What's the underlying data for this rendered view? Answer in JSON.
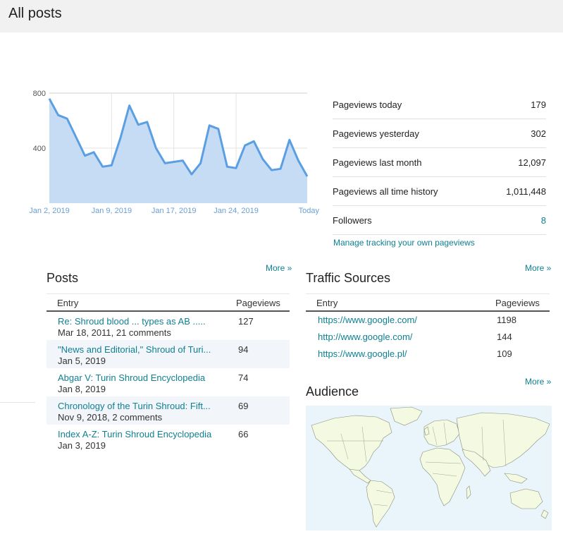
{
  "header": {
    "title": "All posts"
  },
  "chart_data": {
    "type": "area",
    "x_labels": [
      "Jan 2, 2019",
      "Jan 9, 2019",
      "Jan 17, 2019",
      "Jan 24, 2019",
      "Today"
    ],
    "yticks": [
      "800",
      "400"
    ],
    "ylim": [
      0,
      800
    ],
    "values": [
      760,
      640,
      615,
      480,
      345,
      370,
      265,
      275,
      475,
      710,
      570,
      590,
      400,
      290,
      300,
      310,
      210,
      290,
      565,
      540,
      265,
      255,
      420,
      450,
      320,
      240,
      250,
      460,
      310,
      195
    ],
    "line_color": "#5b9fe3",
    "fill_color": "#c6dcf5",
    "grid": true
  },
  "stats": [
    {
      "label": "Pageviews today",
      "value": "179"
    },
    {
      "label": "Pageviews yesterday",
      "value": "302"
    },
    {
      "label": "Pageviews last month",
      "value": "12,097"
    },
    {
      "label": "Pageviews all time history",
      "value": "1,011,448"
    },
    {
      "label": "Followers",
      "value": "8"
    }
  ],
  "manage_link": "Manage tracking your own pageviews",
  "posts": {
    "title": "Posts",
    "more": "More »",
    "col_entry": "Entry",
    "col_pageviews": "Pageviews",
    "rows": [
      {
        "title": "Re: Shroud blood ... types as AB .....",
        "sub": "Mar 18, 2011, 21 comments",
        "views": "127"
      },
      {
        "title": "\"News and Editorial,\" Shroud of Turi...",
        "sub": "Jan 5, 2019",
        "views": "94"
      },
      {
        "title": "Abgar V: Turin Shroud Encyclopedia",
        "sub": "Jan 8, 2019",
        "views": "74"
      },
      {
        "title": "Chronology of the Turin Shroud: Fift...",
        "sub": "Nov 9, 2018, 2 comments",
        "views": "69"
      },
      {
        "title": "Index A-Z: Turin Shroud Encyclopedia",
        "sub": "Jan 3, 2019",
        "views": "66"
      }
    ]
  },
  "traffic": {
    "title": "Traffic Sources",
    "more": "More »",
    "col_entry": "Entry",
    "col_pageviews": "Pageviews",
    "rows": [
      {
        "url": "https://www.google.com/",
        "views": "1198"
      },
      {
        "url": "http://www.google.com/",
        "views": "144"
      },
      {
        "url": "https://www.google.pl/",
        "views": "109"
      }
    ]
  },
  "audience": {
    "title": "Audience",
    "more": "More »"
  },
  "colors": {
    "accent": "#0f8092",
    "header_bg": "#f1f1f1",
    "alt_row": "#f2f5fa"
  }
}
